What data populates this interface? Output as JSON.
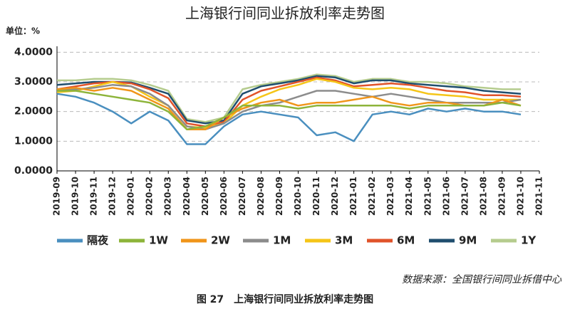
{
  "chart_data": {
    "type": "line",
    "title": "上海银行间同业拆放利率走势图",
    "unit_label": "单位：%",
    "source": "数据来源：全国银行间同业拆借中心",
    "caption": "图 27　上海银行间同业拆放利率走势图",
    "x": [
      "2019-09",
      "2019-10",
      "2019-11",
      "2019-12",
      "2020-01",
      "2020-02",
      "2020-03",
      "2020-04",
      "2020-05",
      "2020-06",
      "2020-07",
      "2020-08",
      "2020-09",
      "2020-10",
      "2020-11",
      "2020-12",
      "2021-01",
      "2021-02",
      "2021-03",
      "2021-04",
      "2021-05",
      "2021-06",
      "2021-07",
      "2021-08",
      "2021-09",
      "2021-10"
    ],
    "xticks": [
      "2019-09",
      "2019-10",
      "2019-11",
      "2019-12",
      "2020-01",
      "2020-02",
      "2020-03",
      "2020-04",
      "2020-05",
      "2020-06",
      "2020-07",
      "2020-08",
      "2020-09",
      "2020-10",
      "2020-11",
      "2020-12",
      "2021-01",
      "2021-02",
      "2021-03",
      "2021-04",
      "2021-05",
      "2021-06",
      "2021-07",
      "2021-08",
      "2021-09",
      "2021-10",
      "2021-11"
    ],
    "ylim": [
      0,
      4.2
    ],
    "yticks": [
      {
        "value": 0,
        "label": "0.0000"
      },
      {
        "value": 1,
        "label": "1.0000"
      },
      {
        "value": 2,
        "label": "2.0000"
      },
      {
        "value": 3,
        "label": "3.0000"
      },
      {
        "value": 4,
        "label": "4.0000"
      }
    ],
    "grid": true,
    "series": [
      {
        "name": "隔夜",
        "color": "#4a8fbf",
        "values": [
          2.6,
          2.5,
          2.3,
          2.0,
          1.6,
          2.0,
          1.7,
          0.9,
          0.9,
          1.5,
          1.9,
          2.0,
          1.9,
          1.8,
          1.2,
          1.3,
          1.0,
          1.9,
          2.0,
          1.9,
          2.1,
          2.0,
          2.1,
          2.0,
          2.0,
          1.9
        ]
      },
      {
        "name": "1W",
        "color": "#8db43a",
        "values": [
          2.7,
          2.7,
          2.6,
          2.5,
          2.4,
          2.3,
          2.0,
          1.4,
          1.5,
          1.8,
          2.2,
          2.2,
          2.2,
          2.1,
          2.2,
          2.2,
          2.2,
          2.2,
          2.2,
          2.1,
          2.2,
          2.2,
          2.2,
          2.2,
          2.3,
          2.2
        ]
      },
      {
        "name": "2W",
        "color": "#f0951a",
        "values": [
          2.75,
          2.8,
          2.7,
          2.8,
          2.7,
          2.4,
          2.1,
          1.4,
          1.4,
          1.8,
          2.1,
          2.3,
          2.4,
          2.2,
          2.3,
          2.3,
          2.4,
          2.5,
          2.3,
          2.2,
          2.3,
          2.3,
          2.2,
          2.2,
          2.4,
          2.2
        ]
      },
      {
        "name": "1M",
        "color": "#8c8c8c",
        "values": [
          2.7,
          2.75,
          2.8,
          2.9,
          2.85,
          2.6,
          2.2,
          1.5,
          1.4,
          1.6,
          2.0,
          2.2,
          2.3,
          2.5,
          2.7,
          2.7,
          2.6,
          2.5,
          2.6,
          2.5,
          2.4,
          2.3,
          2.3,
          2.3,
          2.3,
          2.4
        ]
      },
      {
        "name": "3M",
        "color": "#f5c518",
        "values": [
          2.65,
          2.7,
          2.85,
          3.0,
          2.85,
          2.5,
          2.2,
          1.5,
          1.45,
          1.6,
          2.2,
          2.5,
          2.75,
          2.9,
          3.1,
          3.0,
          2.8,
          2.75,
          2.8,
          2.75,
          2.6,
          2.55,
          2.5,
          2.4,
          2.4,
          2.4
        ]
      },
      {
        "name": "6M",
        "color": "#e0532a",
        "values": [
          2.75,
          2.85,
          2.95,
          3.0,
          2.95,
          2.75,
          2.45,
          1.6,
          1.5,
          1.65,
          2.4,
          2.7,
          2.85,
          3.0,
          3.15,
          3.05,
          2.85,
          2.9,
          2.95,
          2.9,
          2.8,
          2.7,
          2.65,
          2.55,
          2.55,
          2.5
        ]
      },
      {
        "name": "9M",
        "color": "#1f4e6e",
        "values": [
          2.9,
          2.95,
          3.0,
          3.0,
          2.98,
          2.8,
          2.6,
          1.7,
          1.6,
          1.7,
          2.6,
          2.85,
          2.95,
          3.05,
          3.2,
          3.15,
          2.95,
          3.05,
          3.05,
          2.95,
          2.9,
          2.85,
          2.8,
          2.7,
          2.65,
          2.6
        ]
      },
      {
        "name": "1Y",
        "color": "#b5cc8e",
        "values": [
          3.05,
          3.05,
          3.1,
          3.1,
          3.05,
          2.9,
          2.7,
          1.75,
          1.65,
          1.8,
          2.75,
          2.9,
          3.0,
          3.1,
          3.25,
          3.2,
          3.0,
          3.1,
          3.1,
          3.0,
          3.0,
          2.95,
          2.85,
          2.8,
          2.75,
          2.75
        ]
      }
    ]
  }
}
